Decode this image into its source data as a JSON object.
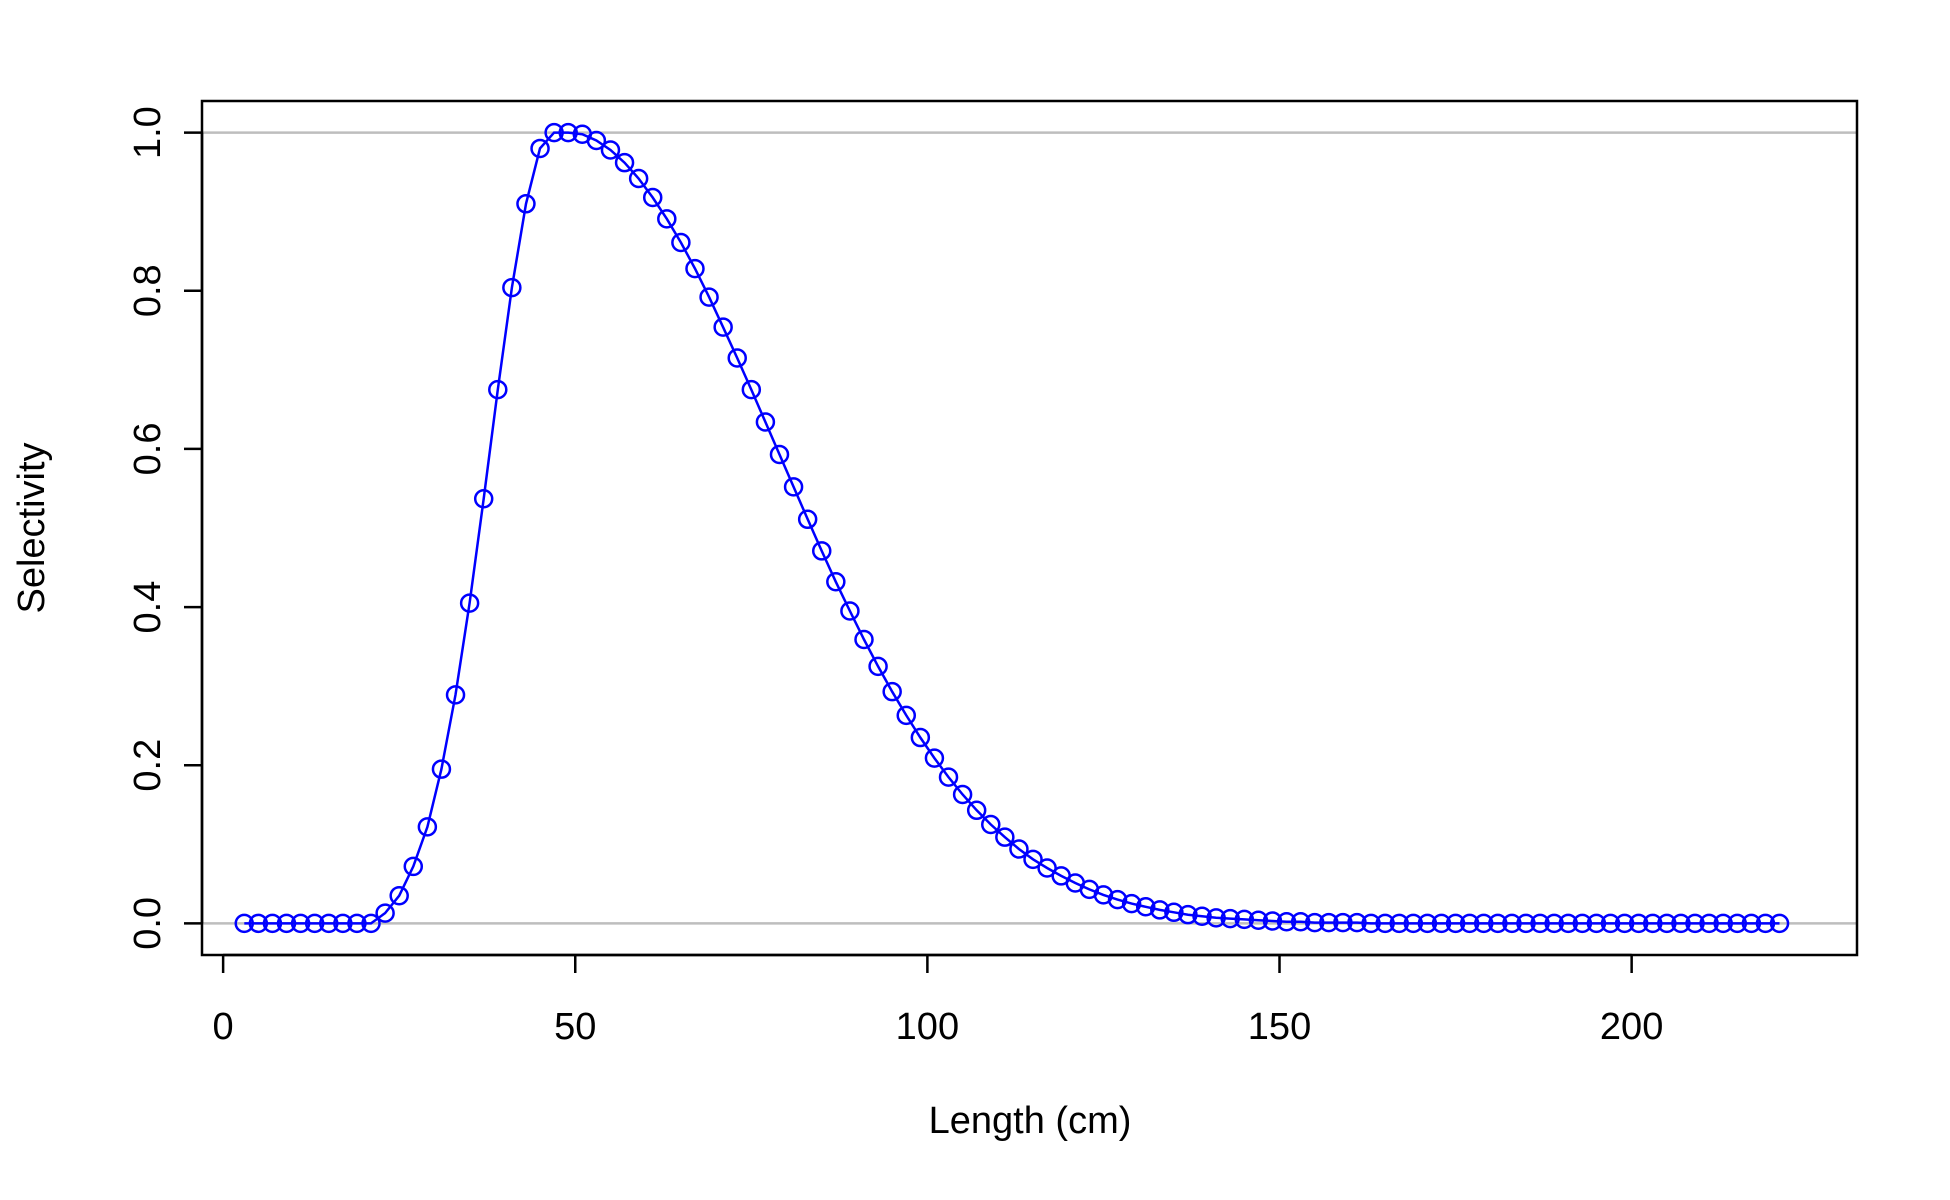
{
  "chart_data": {
    "type": "line",
    "title": "",
    "xlabel": "Length (cm)",
    "ylabel": "Selectivity",
    "xlim": [
      -3,
      232
    ],
    "ylim": [
      -0.04,
      1.04
    ],
    "xticks": [
      0,
      50,
      100,
      150,
      200
    ],
    "xtick_labels": [
      "0",
      "50",
      "100",
      "150",
      "200"
    ],
    "yticks": [
      0,
      0.2,
      0.4,
      0.6,
      0.8,
      1
    ],
    "ytick_labels": [
      "0.0",
      "0.2",
      "0.4",
      "0.6",
      "0.8",
      "1.0"
    ],
    "reference_lines_y": [
      0,
      1
    ],
    "grid": false,
    "colors": {
      "series": "#0000ff",
      "reference": "#bebebe",
      "axes": "#000000"
    },
    "series": [
      {
        "marker": "open-circle",
        "points": [
          [
            3,
            0
          ],
          [
            5,
            0
          ],
          [
            7,
            0
          ],
          [
            9,
            0
          ],
          [
            11,
            0
          ],
          [
            13,
            0
          ],
          [
            15,
            0
          ],
          [
            17,
            0
          ],
          [
            19,
            0
          ],
          [
            21,
            0
          ],
          [
            23,
            0.013
          ],
          [
            25,
            0.035
          ],
          [
            27,
            0.072
          ],
          [
            29,
            0.122
          ],
          [
            31,
            0.195
          ],
          [
            33,
            0.289
          ],
          [
            35,
            0.405
          ],
          [
            37,
            0.537
          ],
          [
            39,
            0.675
          ],
          [
            41,
            0.804
          ],
          [
            43,
            0.91
          ],
          [
            45,
            0.98
          ],
          [
            47,
            1.0
          ],
          [
            49,
            1.0
          ],
          [
            51,
            0.998
          ],
          [
            53,
            0.99
          ],
          [
            55,
            0.978
          ],
          [
            57,
            0.962
          ],
          [
            59,
            0.942
          ],
          [
            61,
            0.918
          ],
          [
            63,
            0.891
          ],
          [
            65,
            0.861
          ],
          [
            67,
            0.828
          ],
          [
            69,
            0.792
          ],
          [
            71,
            0.754
          ],
          [
            73,
            0.715
          ],
          [
            75,
            0.675
          ],
          [
            77,
            0.634
          ],
          [
            79,
            0.593
          ],
          [
            81,
            0.552
          ],
          [
            83,
            0.511
          ],
          [
            85,
            0.471
          ],
          [
            87,
            0.432
          ],
          [
            89,
            0.395
          ],
          [
            91,
            0.359
          ],
          [
            93,
            0.325
          ],
          [
            95,
            0.293
          ],
          [
            97,
            0.263
          ],
          [
            99,
            0.235
          ],
          [
            101,
            0.209
          ],
          [
            103,
            0.185
          ],
          [
            105,
            0.163
          ],
          [
            107,
            0.143
          ],
          [
            109,
            0.125
          ],
          [
            111,
            0.109
          ],
          [
            113,
            0.094
          ],
          [
            115,
            0.081
          ],
          [
            117,
            0.07
          ],
          [
            119,
            0.06
          ],
          [
            121,
            0.051
          ],
          [
            123,
            0.043
          ],
          [
            125,
            0.036
          ],
          [
            127,
            0.03
          ],
          [
            129,
            0.025
          ],
          [
            131,
            0.021
          ],
          [
            133,
            0.017
          ],
          [
            135,
            0.014
          ],
          [
            137,
            0.011
          ],
          [
            139,
            0.009
          ],
          [
            141,
            0.007
          ],
          [
            143,
            0.006
          ],
          [
            145,
            0.005
          ],
          [
            147,
            0.004
          ],
          [
            149,
            0.003
          ],
          [
            151,
            0.002
          ],
          [
            153,
            0.002
          ],
          [
            155,
            0.001
          ],
          [
            157,
            0.001
          ],
          [
            159,
            0.001
          ],
          [
            161,
            0.001
          ],
          [
            163,
            0
          ],
          [
            165,
            0
          ],
          [
            167,
            0
          ],
          [
            169,
            0
          ],
          [
            171,
            0
          ],
          [
            173,
            0
          ],
          [
            175,
            0
          ],
          [
            177,
            0
          ],
          [
            179,
            0
          ],
          [
            181,
            0
          ],
          [
            183,
            0
          ],
          [
            185,
            0
          ],
          [
            187,
            0
          ],
          [
            189,
            0
          ],
          [
            191,
            0
          ],
          [
            193,
            0
          ],
          [
            195,
            0
          ],
          [
            197,
            0
          ],
          [
            199,
            0
          ],
          [
            201,
            0
          ],
          [
            203,
            0
          ],
          [
            205,
            0
          ],
          [
            207,
            0
          ],
          [
            209,
            0
          ],
          [
            211,
            0
          ],
          [
            213,
            0
          ],
          [
            215,
            0
          ],
          [
            217,
            0
          ],
          [
            219,
            0
          ],
          [
            221,
            0
          ]
        ]
      }
    ]
  }
}
